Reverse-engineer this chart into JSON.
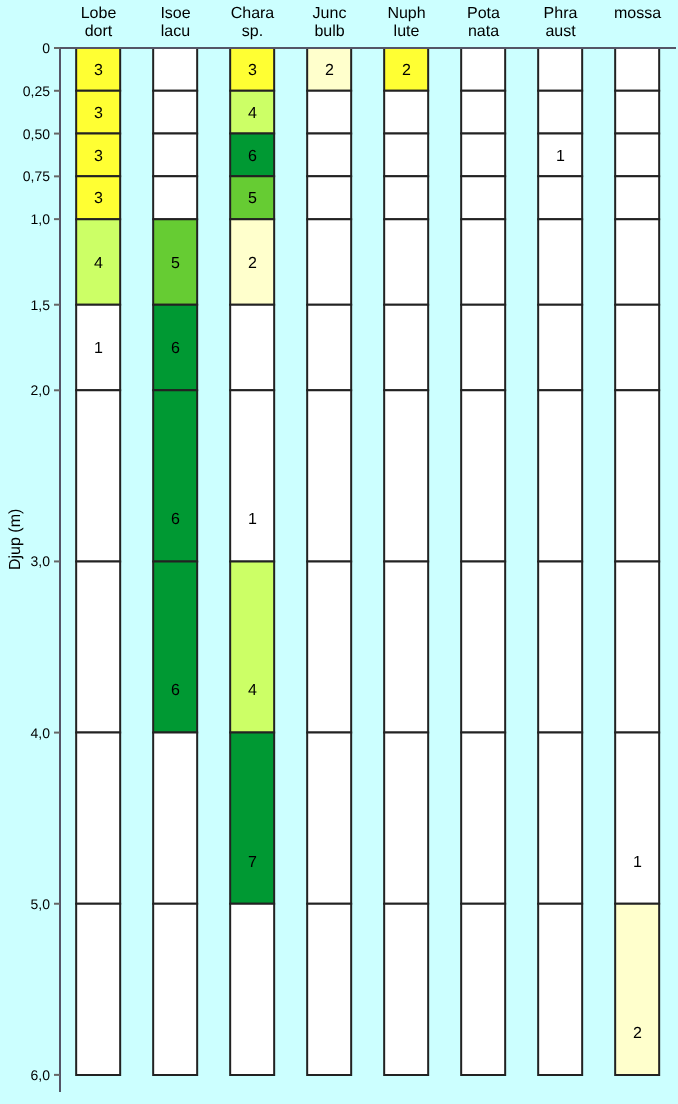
{
  "chart_data": {
    "type": "bar",
    "stacked": true,
    "ylabel": "Djup (m)",
    "categories": [
      "Lobe dort",
      "Isoe lacu",
      "Chara sp.",
      "Junc bulb",
      "Nuph lute",
      "Pota nata",
      "Phra aust",
      "mossa"
    ],
    "ylim": [
      6.1,
      0
    ],
    "yticks": [
      0,
      {
        "value": 0.25,
        "label": "0,25"
      },
      {
        "value": 0.5,
        "label": "0,50"
      },
      {
        "value": 0.75,
        "label": "0,75"
      },
      {
        "value": 1,
        "label": "1,0"
      },
      {
        "value": 1.5,
        "label": "1,5"
      },
      {
        "value": 2,
        "label": "2,0"
      },
      {
        "value": 3,
        "label": "3,0"
      },
      {
        "value": 4,
        "label": "4,0"
      },
      {
        "value": 5,
        "label": "5,0"
      },
      {
        "value": 6,
        "label": "6,0"
      }
    ],
    "series": [
      {
        "values": [
          0.25,
          0.25,
          0.25,
          0.25,
          0.25,
          0.25,
          0.25,
          0.25
        ],
        "colors": [
          "#ffff33",
          "#ffffff",
          "#ffff33",
          "#ffffcc",
          "#ffff33",
          "#ffffff",
          "#ffffff",
          "#ffffff"
        ]
      },
      {
        "values": [
          0.25,
          0.25,
          0.25,
          0.25,
          0.25,
          0.25,
          0.25,
          0.25
        ],
        "colors": [
          "#ffff33",
          "#ffffff",
          "#ccff66",
          "#ffffff",
          "#ffffff",
          "#ffffff",
          "#ffffff",
          "#ffffff"
        ]
      },
      {
        "values": [
          0.25,
          0.25,
          0.25,
          0.25,
          0.25,
          0.25,
          0.25,
          0.25
        ],
        "colors": [
          "#ffff33",
          "#ffffff",
          "#009933",
          "#ffffff",
          "#ffffff",
          "#ffffff",
          "#ffffff",
          "#ffffff"
        ]
      },
      {
        "values": [
          0.25,
          0.25,
          0.25,
          0.25,
          0.25,
          0.25,
          0.25,
          0.25
        ],
        "colors": [
          "#ffff33",
          "#ffffff",
          "#66cc33",
          "#ffffff",
          "#ffffff",
          "#ffffff",
          "#ffffff",
          "#ffffff"
        ]
      },
      {
        "values": [
          0.5,
          0.5,
          0.5,
          0.5,
          0.5,
          0.5,
          0.5,
          0.5
        ],
        "colors": [
          "#ccff66",
          "#66cc33",
          "#ffffcc",
          "#ffffff",
          "#ffffff",
          "#ffffff",
          "#ffffff",
          "#ffffff"
        ]
      },
      {
        "values": [
          0.5,
          0.5,
          0.5,
          0.5,
          0.5,
          0.5,
          0.5,
          0.5
        ],
        "colors": [
          "#ffffff",
          "#009933",
          "#ffffff",
          "#ffffff",
          "#ffffff",
          "#ffffff",
          "#ffffff",
          "#ffffff"
        ]
      },
      {
        "values": [
          1,
          1,
          1,
          1,
          1,
          1,
          1,
          1
        ],
        "colors": [
          "#ffffff",
          "#009933",
          "#ffffff",
          "#ffffff",
          "#ffffff",
          "#ffffff",
          "#ffffff",
          "#ffffff"
        ]
      },
      {
        "values": [
          1,
          1,
          1,
          1,
          1,
          1,
          1,
          1
        ],
        "colors": [
          "#ffffff",
          "#009933",
          "#ccff66",
          "#ffffff",
          "#ffffff",
          "#ffffff",
          "#ffffff",
          "#ffffff"
        ]
      },
      {
        "values": [
          1,
          1,
          1,
          1,
          1,
          1,
          1,
          1
        ],
        "colors": [
          "#ffffff",
          "#ffffff",
          "#009933",
          "#ffffff",
          "#ffffff",
          "#ffffff",
          "#ffffff",
          "#ffffff"
        ]
      },
      {
        "values": [
          1,
          1,
          1,
          1,
          1,
          1,
          1,
          1
        ],
        "colors": [
          "#ffffff",
          "#ffffff",
          "#ffffff",
          "#ffffff",
          "#ffffff",
          "#ffffff",
          "#ffffff",
          "#ffffcc"
        ]
      }
    ],
    "annotations": [
      {
        "text": "3",
        "x": "Lobe dort",
        "y": 0.25
      },
      {
        "text": "3",
        "x": "Lobe dort",
        "y": 0.5
      },
      {
        "text": "3",
        "x": "Lobe dort",
        "y": 0.75
      },
      {
        "text": "3",
        "x": "Lobe dort",
        "y": 1
      },
      {
        "text": "4",
        "x": "Lobe dort",
        "y": 1.5
      },
      {
        "text": "1",
        "x": "Lobe dort",
        "y": 2
      },
      {
        "text": "5",
        "x": "Isoe lacu",
        "y": 1.5
      },
      {
        "text": "6",
        "x": "Isoe lacu",
        "y": 2
      },
      {
        "text": "6",
        "x": "Isoe lacu",
        "y": 3
      },
      {
        "text": "6",
        "x": "Isoe lacu",
        "y": 4
      },
      {
        "text": "3",
        "x": "Chara sp.",
        "y": 0.25
      },
      {
        "text": "4",
        "x": "Chara sp.",
        "y": 0.5
      },
      {
        "text": "6",
        "x": "Chara sp.",
        "y": 0.75
      },
      {
        "text": "5",
        "x": "Chara sp.",
        "y": 1
      },
      {
        "text": "2",
        "x": "Chara sp.",
        "y": 1.5
      },
      {
        "text": "1",
        "x": "Chara sp.",
        "y": 3
      },
      {
        "text": "4",
        "x": "Chara sp.",
        "y": 4
      },
      {
        "text": "7",
        "x": "Chara sp.",
        "y": 5
      },
      {
        "text": "2",
        "x": "Junc bulb",
        "y": 0.25
      },
      {
        "text": "2",
        "x": "Nuph lute",
        "y": 0.25
      },
      {
        "text": "1",
        "x": "Phra aust",
        "y": 0.75
      },
      {
        "text": "1",
        "x": "mossa",
        "y": 5
      },
      {
        "text": "2",
        "x": "mossa",
        "y": 6
      }
    ]
  }
}
